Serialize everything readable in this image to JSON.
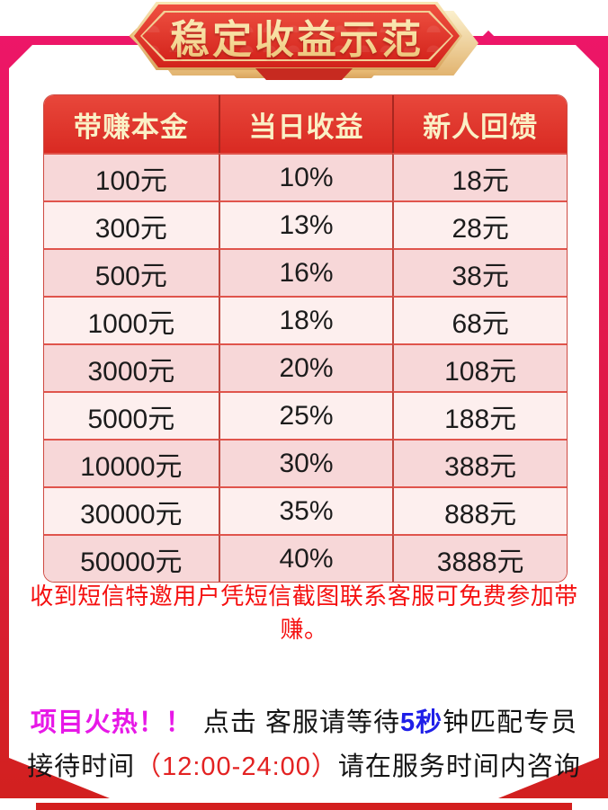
{
  "banner": {
    "title": "稳定收益示范"
  },
  "table": {
    "headers": [
      "带赚本金",
      "当日收益",
      "新人回馈"
    ],
    "rows": [
      [
        "100元",
        "10%",
        "18元"
      ],
      [
        "300元",
        "13%",
        "28元"
      ],
      [
        "500元",
        "16%",
        "38元"
      ],
      [
        "1000元",
        "18%",
        "68元"
      ],
      [
        "3000元",
        "20%",
        "108元"
      ],
      [
        "5000元",
        "25%",
        "188元"
      ],
      [
        "10000元",
        "30%",
        "388元"
      ],
      [
        "30000元",
        "35%",
        "888元"
      ],
      [
        "50000元",
        "40%",
        "3888元"
      ]
    ]
  },
  "notice": "收到短信特邀用户凭短信截图联系客服可免费参加带赚。",
  "footer": {
    "line1": {
      "hot": "项目火热！！",
      "mid": "点击 客服请等待",
      "seconds": "5秒",
      "tail": "钟匹配专员"
    },
    "line2": {
      "pre": "接待时间",
      "time": "（12:00-24:00）",
      "post": "请在服务时间内咨询"
    }
  },
  "colors": {
    "frame_pink": "#ed1668",
    "frame_red": "#d2201f",
    "banner_red": "#d5251d",
    "banner_gold": "#e9bd72",
    "header_text": "#faf0c6",
    "row_pink_dark": "#f7d7d8",
    "row_pink_light": "#fdefee",
    "notice_red": "#f50f0f",
    "hot_magenta": "#e718e7",
    "seconds_blue": "#1f1fe8",
    "time_red": "#e32222"
  }
}
